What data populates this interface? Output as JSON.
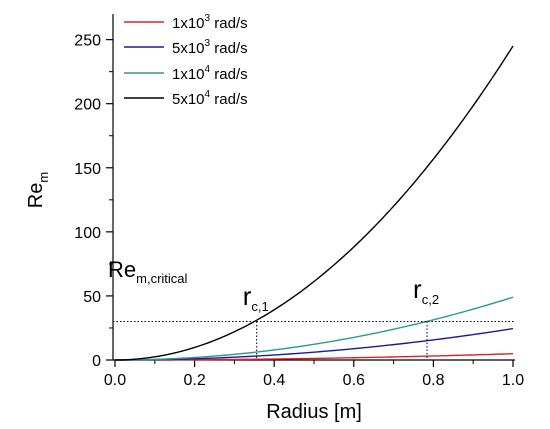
{
  "chart_data": {
    "type": "line",
    "xlabel": "Radius [m]",
    "ylabel": {
      "main": "Re",
      "sub": "m"
    },
    "xlim": [
      0.0,
      1.0
    ],
    "ylim": [
      0,
      270
    ],
    "xticks": [
      0.0,
      0.2,
      0.4,
      0.6,
      0.8,
      1.0
    ],
    "xtick_labels": [
      "0.0",
      "0.2",
      "0.4",
      "0.6",
      "0.8",
      "1.0"
    ],
    "yticks": [
      0,
      50,
      100,
      150,
      200,
      250
    ],
    "ytick_labels": [
      "0",
      "50",
      "100",
      "150",
      "200",
      "250"
    ],
    "grid": false,
    "legend_position": "top-left",
    "series": [
      {
        "name_main": "1x10",
        "name_exp": "3",
        "name_unit": " rad/s",
        "color": "#e02020",
        "coef": 4.9
      },
      {
        "name_main": "5x10",
        "name_exp": "3",
        "name_unit": " rad/s",
        "color": "#1a1aa0",
        "coef": 24.5
      },
      {
        "name_main": "1x10",
        "name_exp": "4",
        "name_unit": " rad/s",
        "color": "#2a9a8a",
        "coef": 49
      },
      {
        "name_main": "5x10",
        "name_exp": "4",
        "name_unit": " rad/s",
        "color": "#000000",
        "coef": 245
      }
    ],
    "critical_line": {
      "y": 30,
      "label_main": "Re",
      "label_sub": "m,critical"
    },
    "markers": [
      {
        "x": 0.356,
        "label_main": "r",
        "label_sub": "c,1"
      },
      {
        "x": 0.784,
        "label_main": "r",
        "label_sub": "c,2"
      }
    ]
  }
}
